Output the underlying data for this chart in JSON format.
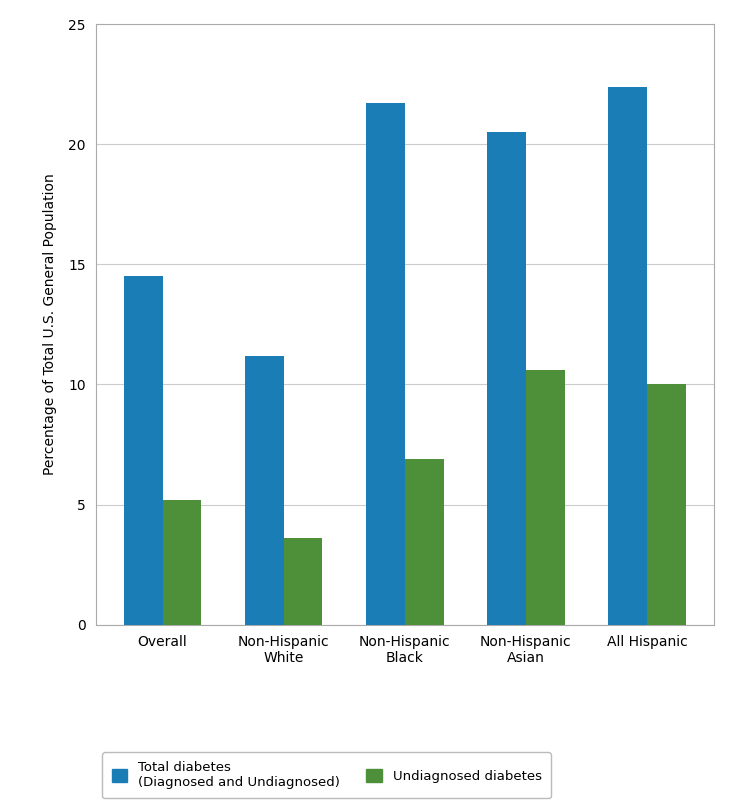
{
  "categories": [
    "Overall",
    "Non-Hispanic\nWhite",
    "Non-Hispanic\nBlack",
    "Non-Hispanic\nAsian",
    "All Hispanic"
  ],
  "total_diabetes": [
    14.5,
    11.2,
    21.7,
    20.5,
    22.4
  ],
  "undiagnosed_diabetes": [
    5.2,
    3.6,
    6.9,
    10.6,
    10.0
  ],
  "bar_color_total": "#1a7db5",
  "bar_color_undiagnosed": "#4e8f3a",
  "ylabel": "Percentage of Total U.S. General Population",
  "ylim": [
    0,
    25
  ],
  "yticks": [
    0,
    5,
    10,
    15,
    20,
    25
  ],
  "legend_label_total": "Total diabetes\n(Diagnosed and Undiagnosed)",
  "legend_label_undiagnosed": "Undiagnosed diabetes",
  "background_color": "#ffffff",
  "bar_width": 0.32,
  "grid_color": "#cccccc",
  "spine_color": "#aaaaaa"
}
